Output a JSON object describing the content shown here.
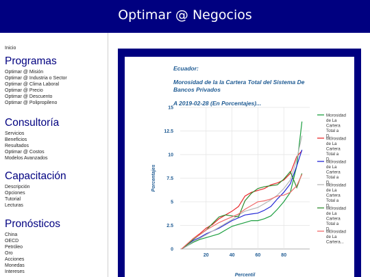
{
  "header": {
    "title": "Optimar @ Negocios"
  },
  "sidebar": {
    "inicio": "Inicio",
    "sections": [
      {
        "title": "Programas",
        "items": [
          "Optimar @ Misión",
          "Optimar @ Industria o Sector",
          "Optimar @ Clima Laboral",
          "Optimar @ Precio",
          "Optimar @ Descuento",
          "Optimar @ Polipropileno"
        ]
      },
      {
        "title": "Consultoría",
        "items": [
          "Servicios",
          "Beneficios",
          "Resultados",
          "Optimar @ Costos",
          "Modelos Avanzados"
        ]
      },
      {
        "title": "Capacitación",
        "items": [
          "Descripción",
          "Opciones",
          "Tutorial",
          "Lecturas"
        ]
      },
      {
        "title": "Pronósticos",
        "items": [
          "China",
          "OECD",
          "Petróleo",
          "Oro",
          "Acciones",
          "Monedas",
          "Intereses"
        ]
      }
    ]
  },
  "chart_data": {
    "type": "line",
    "title_lines": [
      "Ecuador:",
      "Morosidad de la la Cartera Total del Sistema De",
      "Bancos Privados",
      "A 2019-02-28 (En Porcentajes)..."
    ],
    "xlabel": "Percentil",
    "ylabel": "Porcentajes",
    "xlim": [
      0,
      100
    ],
    "ylim": [
      0,
      15
    ],
    "xticks": [
      20,
      40,
      60,
      80
    ],
    "yticks": [
      0,
      2.5,
      5,
      7.5,
      10,
      12.5,
      15
    ],
    "ytick_labels": [
      "0",
      "2.5",
      "5",
      "7.5",
      "10",
      "12.5",
      "15"
    ],
    "grid": true,
    "legend_position": "right",
    "x": [
      1,
      5,
      10,
      15,
      20,
      25,
      30,
      35,
      40,
      45,
      50,
      55,
      60,
      65,
      70,
      75,
      80,
      85,
      90,
      94
    ],
    "series": [
      {
        "name": "Morosidad de La Cartera Total a D...",
        "color": "#1b9e3f",
        "values": [
          0.0,
          0.3,
          0.7,
          1.0,
          1.2,
          1.4,
          1.6,
          2.0,
          2.4,
          2.6,
          2.8,
          3.0,
          3.0,
          3.2,
          3.5,
          4.2,
          5.0,
          6.0,
          8.8,
          13.5
        ]
      },
      {
        "name": "Morosidad de La Cartera Total a D...",
        "color": "#e8282b",
        "values": [
          0.0,
          0.4,
          1.1,
          1.6,
          2.2,
          2.6,
          3.2,
          3.6,
          4.0,
          4.5,
          5.6,
          6.0,
          6.2,
          6.4,
          6.8,
          7.0,
          7.3,
          8.0,
          9.8,
          10.4
        ]
      },
      {
        "name": "Morosidad de La Cartera Total a D...",
        "color": "#2227d6",
        "values": [
          0.0,
          0.3,
          0.9,
          1.2,
          1.6,
          1.9,
          2.2,
          2.6,
          3.0,
          3.3,
          3.6,
          3.7,
          3.8,
          4.1,
          4.5,
          5.3,
          6.0,
          6.9,
          8.8,
          10.5
        ]
      },
      {
        "name": "Morosidad de La Cartera Total a D...",
        "color": "#b8b8b8",
        "values": [
          0.0,
          0.3,
          0.8,
          1.1,
          1.5,
          1.9,
          2.3,
          2.7,
          3.1,
          3.6,
          4.0,
          4.2,
          4.4,
          4.8,
          5.2,
          5.7,
          6.4,
          7.3,
          9.5,
          12.0
        ]
      },
      {
        "name": "Morosidad de La Cartera Total a D...",
        "color": "#2e8b2e",
        "values": [
          0.0,
          0.4,
          1.0,
          1.5,
          2.0,
          2.7,
          3.4,
          3.6,
          3.5,
          3.4,
          5.1,
          5.9,
          6.4,
          6.6,
          6.7,
          6.8,
          7.4,
          8.2,
          6.5,
          8.0
        ]
      },
      {
        "name": "Morosidad de La Cartera...",
        "color": "#f06a6a",
        "values": [
          0.0,
          0.5,
          1.1,
          1.5,
          2.0,
          2.4,
          2.8,
          3.1,
          3.4,
          3.7,
          4.2,
          4.6,
          5.0,
          5.1,
          5.3,
          5.6,
          5.7,
          6.0,
          6.7,
          7.9
        ]
      }
    ]
  }
}
